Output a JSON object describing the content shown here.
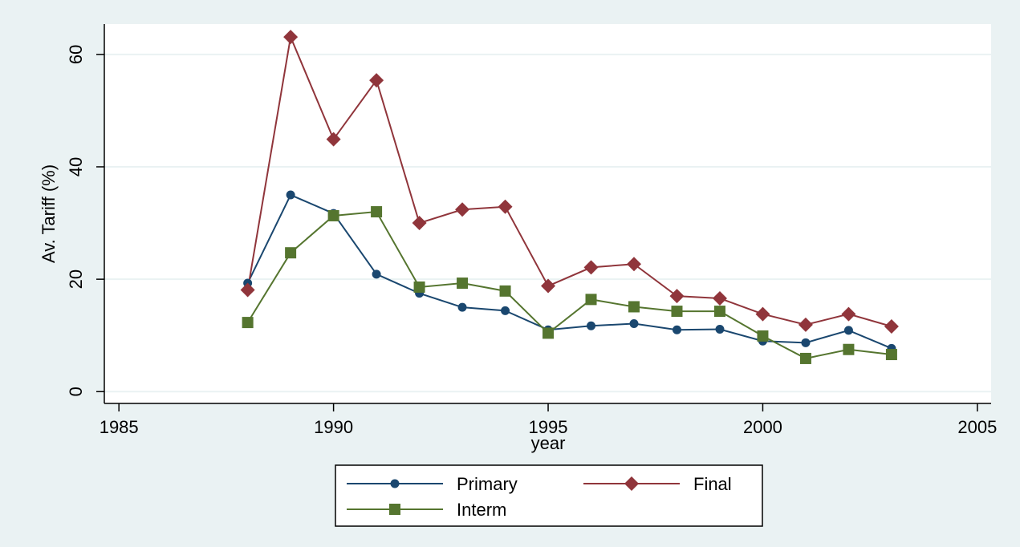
{
  "chart_data": {
    "type": "line",
    "x_label": "year",
    "y_label": "Av. Tariff (%)",
    "x": [
      1988,
      1989,
      1990,
      1991,
      1992,
      1993,
      1994,
      1995,
      1996,
      1997,
      1998,
      1999,
      2000,
      2001,
      2002,
      2003
    ],
    "series": [
      {
        "name": "Primary",
        "color": "#1a476f",
        "marker": "circle",
        "values": [
          19.3,
          35,
          31.7,
          20.9,
          17.5,
          15,
          14.4,
          11,
          11.7,
          12.1,
          11,
          11.1,
          9,
          8.7,
          10.9,
          7.7
        ]
      },
      {
        "name": "Final",
        "color": "#90353b",
        "marker": "diamond",
        "values": [
          18.1,
          63.1,
          44.9,
          55.4,
          30,
          32.4,
          32.9,
          18.8,
          22.1,
          22.7,
          17,
          16.6,
          13.8,
          11.9,
          13.8,
          11.6
        ]
      },
      {
        "name": "Interm",
        "color": "#55752f",
        "marker": "square",
        "values": [
          12.3,
          24.7,
          31.3,
          32,
          18.6,
          19.3,
          17.9,
          10.4,
          16.4,
          15.1,
          14.3,
          14.3,
          9.9,
          5.9,
          7.5,
          6.6
        ]
      }
    ],
    "xlim": [
      1984.66,
      2005.32
    ],
    "xticks": [
      1985,
      1990,
      1995,
      2000,
      2005
    ],
    "ylim": [
      -2.1,
      65.4
    ],
    "yticks": [
      0,
      20,
      40,
      60
    ],
    "grid": true,
    "legend": "bottom"
  }
}
